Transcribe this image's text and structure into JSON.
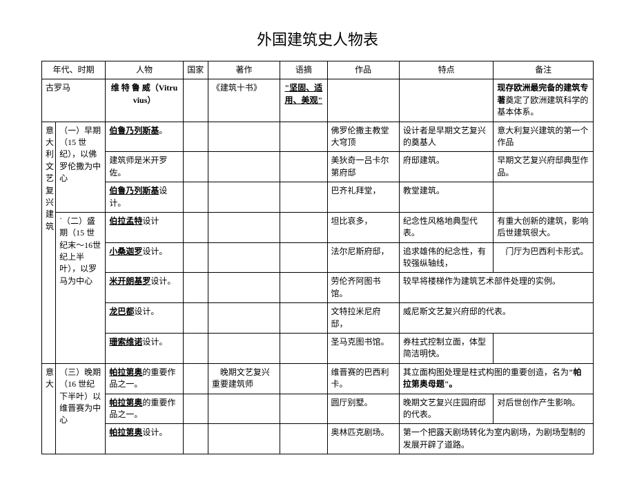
{
  "title": "外国建筑史人物表",
  "headers": {
    "era": "年代、时期",
    "person": "人物",
    "country": "国家",
    "book": "著作",
    "quote": "语摘",
    "work": "作品",
    "trait": "特点",
    "note": "备注"
  },
  "sidebar": {
    "group1": "意大利文艺复兴建筑",
    "group2": "意大"
  },
  "rows": {
    "r1": {
      "era": "古罗马",
      "person_b": "维 特 鲁 威（Vitruvius）",
      "book": "《建筑十书》",
      "quote_u_b": "\"坚固、适用、美观\"",
      "note_pre": "现存欧洲最完备的建筑专著",
      "note_after": "奠定了欧洲建筑科学的基本体系。"
    },
    "r2": {
      "era": "（一）早期（15 世纪），以佛罗伦撒为中心",
      "person_u_b": "伯鲁乃列斯基",
      "person_after": "。",
      "work": "佛罗伦撒主教堂大穹顶",
      "trait": "设计者是早期文艺复兴的奠基人",
      "note": "意大利复兴建筑的第一个作品"
    },
    "r3": {
      "person": "建筑师是米开罗佐。",
      "work": "美狄奇一吕卡尔第府邸",
      "trait": "府邸建筑。",
      "note": "早期文艺复兴府邸典型作品。"
    },
    "r4": {
      "person_u_b": "伯鲁乃列斯基",
      "person_after": "设计。",
      "work": "巴齐礼拜堂，",
      "trait": "教堂建筑。"
    },
    "r5": {
      "era": "`（二）盛期（15 世纪末～16世纪上半叶），以罗马为中心",
      "person_u_b": "伯拉孟特",
      "person_after": "设计",
      "work": "坦比哀多，",
      "trait": "纪念性风格地典型代表。",
      "note": "有重大创新的建筑，影响后世建筑很大。"
    },
    "r6": {
      "person_u_b": "小桑迦罗",
      "person_after": "设计。",
      "work": "法尔尼斯府邸，",
      "trait": "追求雄伟的纪念性，有较强纵轴线，",
      "note": "　门厅为巴西利卡形式。"
    },
    "r7": {
      "person_u_b": "米开朗基罗",
      "person_after": "设计。",
      "work": "劳伦齐阿图书馆。",
      "trait": "较早将楼梯作为建筑艺术部件处理的实例。"
    },
    "r8": {
      "person_u_b": "龙巴都",
      "person_after": "设计。",
      "work": "文特拉米尼府邸，",
      "trait": "威尼斯文艺复兴府邸的代表。"
    },
    "r9": {
      "person_u_b": "珊索维诺",
      "person_after": "设计。",
      "work": "圣马克图书馆。",
      "trait": "券柱式控制立面，体型简洁明快。"
    },
    "r10": {
      "era": "（三）晚期（16 世纪下半叶）以维晋赛为中心",
      "person_u_b": "帕拉第奥",
      "person_after": "的重要作品之一。",
      "book": "　晚期文艺复兴重要建筑师",
      "work": "维晋赛的巴西利卡。",
      "trait_pre": "其立面构图处理是柱式构图的重要创造，名为",
      "trait_b": "\"帕拉第奥母题\"。"
    },
    "r11": {
      "person_u_b": "帕拉第奥",
      "person_after": "的重要作品之一。",
      "work": "圆厅别墅。",
      "trait": "晚期文艺复兴庄园府邸的代表。",
      "note": "对后世创作产生影响。"
    },
    "r12": {
      "person_u_b": "帕拉第奥",
      "person_after": "设计。",
      "work": "奥林匹克剧场。",
      "trait": "第一个把露天剧场转化为室内剧场，为剧场型制的发展开辟了道路。"
    }
  }
}
